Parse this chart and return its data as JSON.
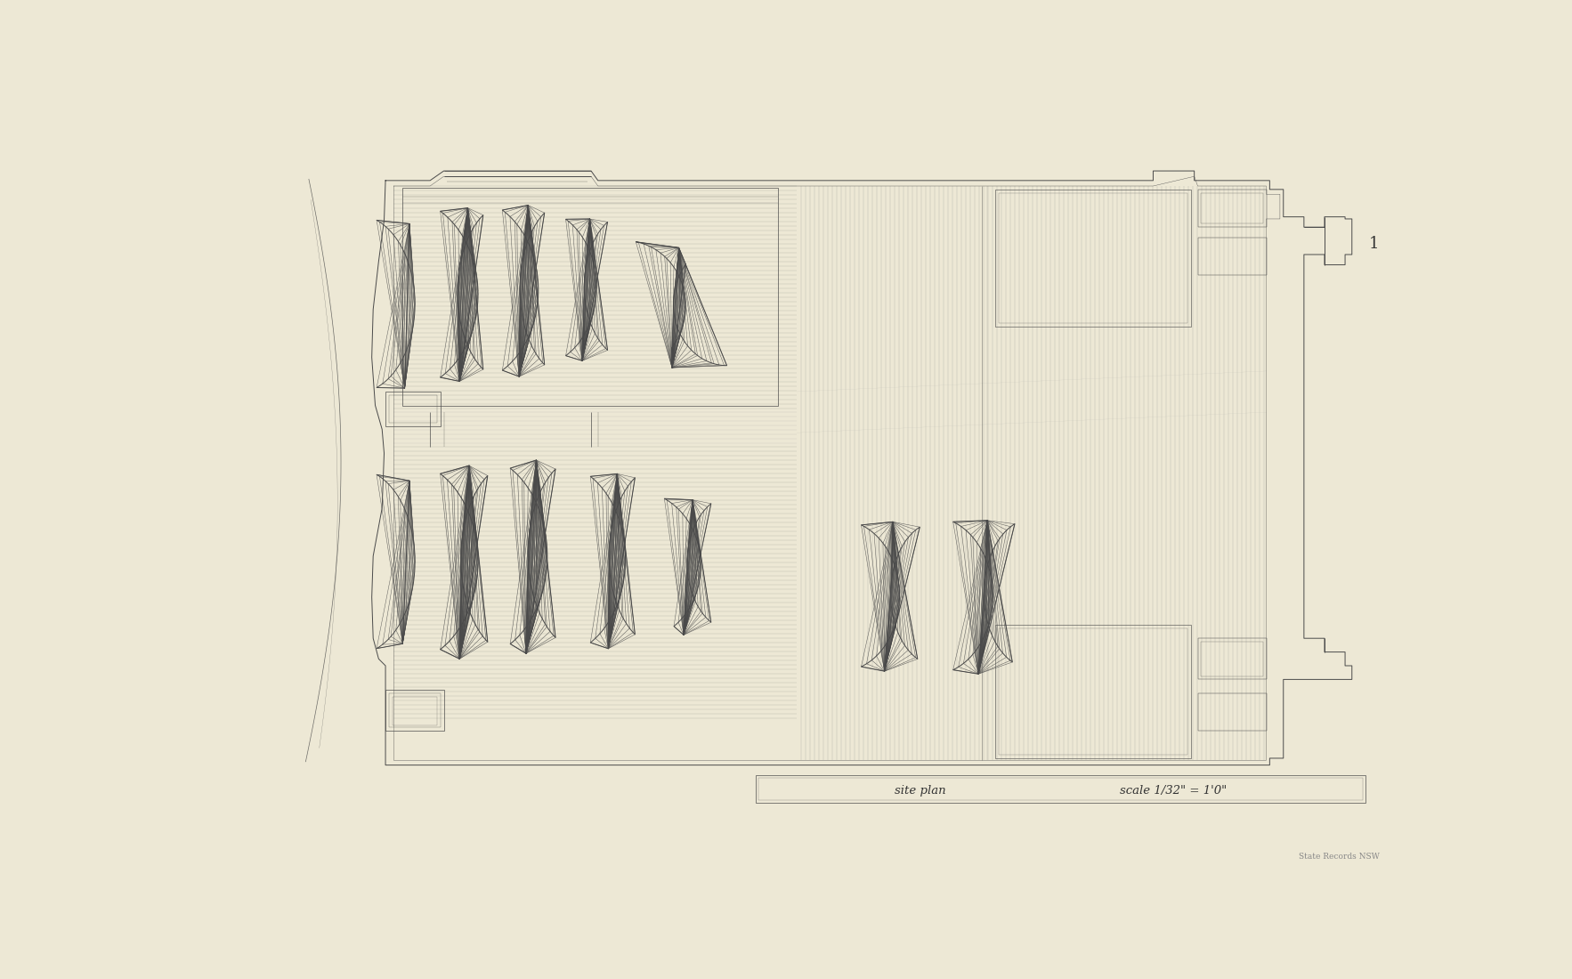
{
  "bg_color": "#ede8d5",
  "line_color": "#4a4a4a",
  "lw_main": 0.7,
  "lw_thin": 0.35,
  "lw_thick": 1.1,
  "page_num": "1",
  "watermark": "State Records NSW",
  "title_text": "site plan",
  "scale_text": "scale 1/32\" = 1'0\""
}
